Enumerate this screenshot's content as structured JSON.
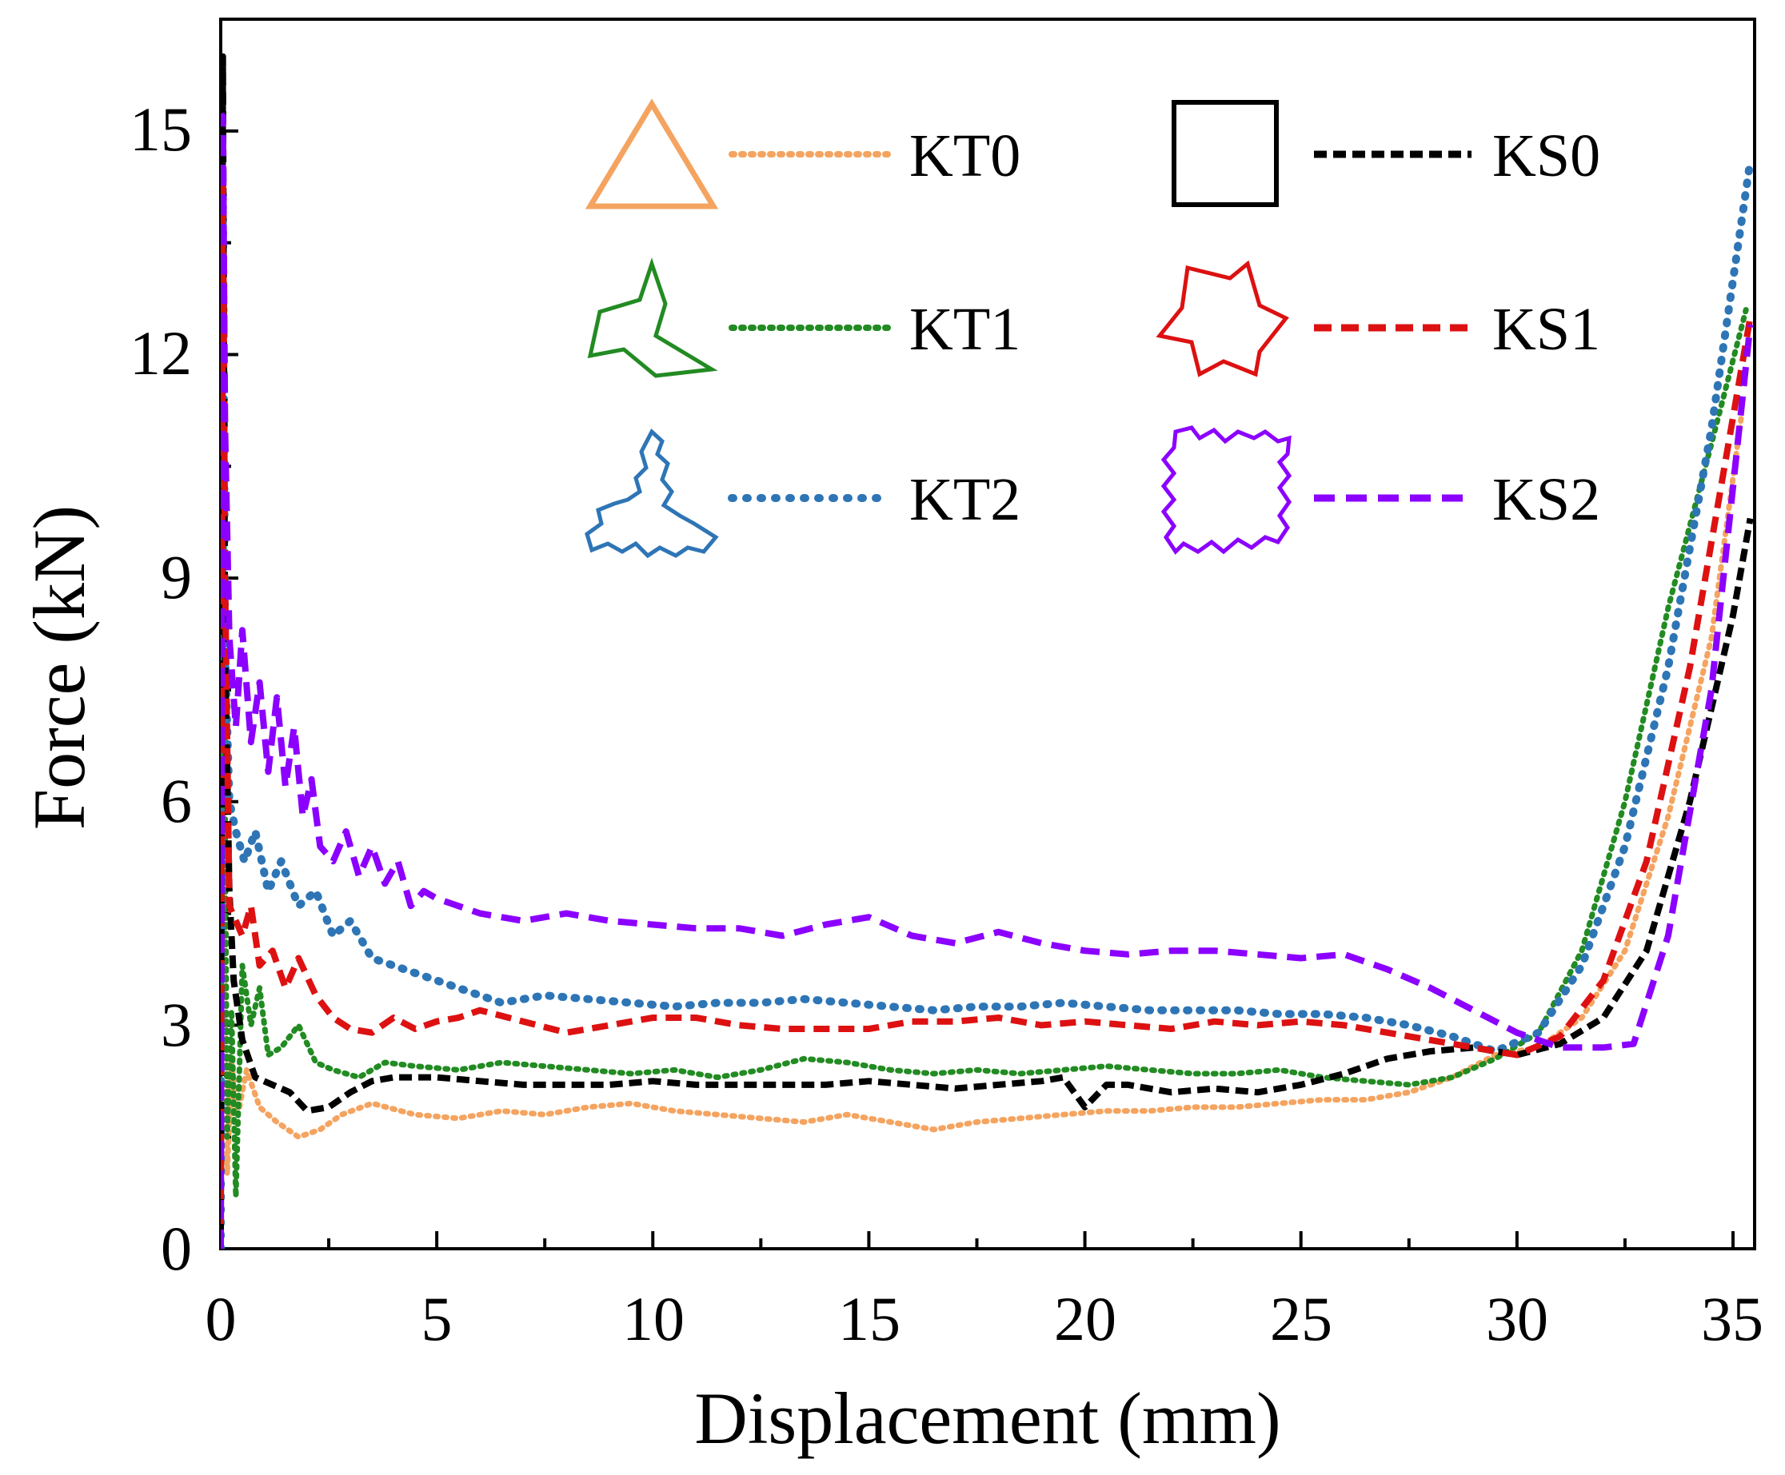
{
  "chart_data": {
    "type": "line",
    "title": "",
    "xlabel": "Displacement (mm)",
    "ylabel": "Force (kN)",
    "xlim": [
      0,
      35.5
    ],
    "ylim": [
      0,
      16.5
    ],
    "xticks": [
      0,
      5,
      10,
      15,
      20,
      25,
      30,
      35
    ],
    "xtick_labels": [
      "0",
      "5",
      "10",
      "15",
      "20",
      "25",
      "30",
      "35"
    ],
    "yticks": [
      0,
      3,
      6,
      9,
      12,
      15
    ],
    "ytick_labels": [
      "0",
      "3",
      "6",
      "9",
      "12",
      "15"
    ],
    "grid": false,
    "legend_position": "top-center",
    "series": [
      {
        "name": "KT0",
        "color": "#F4A460",
        "style": "dotted",
        "shape": "triangle",
        "x": [
          0,
          0.05,
          0.1,
          0.15,
          0.25,
          0.4,
          0.6,
          0.9,
          1.3,
          1.8,
          2.3,
          2.8,
          3.5,
          4.5,
          5.5,
          6.5,
          7.5,
          8.5,
          9.5,
          10.5,
          11.5,
          12.5,
          13.5,
          14.5,
          15.5,
          16.5,
          17.5,
          18.5,
          19.5,
          20.5,
          21.5,
          22.5,
          23.5,
          24.5,
          25.5,
          26.5,
          27.5,
          28.5,
          29.5,
          30.5,
          31.5,
          32.5,
          33.5,
          34.5,
          35.2
        ],
        "y": [
          0,
          11.5,
          5,
          1,
          2.5,
          1.8,
          2.4,
          1.9,
          1.7,
          1.5,
          1.6,
          1.8,
          1.95,
          1.8,
          1.75,
          1.85,
          1.8,
          1.9,
          1.95,
          1.85,
          1.8,
          1.75,
          1.7,
          1.8,
          1.7,
          1.6,
          1.7,
          1.75,
          1.8,
          1.85,
          1.85,
          1.9,
          1.9,
          1.95,
          2.0,
          2.0,
          2.1,
          2.3,
          2.6,
          2.7,
          3.1,
          4.0,
          5.8,
          8.2,
          11.2
        ]
      },
      {
        "name": "KT1",
        "color": "#228B22",
        "style": "dotted",
        "shape": "three-arm",
        "x": [
          0,
          0.05,
          0.1,
          0.15,
          0.25,
          0.35,
          0.5,
          0.7,
          0.9,
          1.1,
          1.4,
          1.8,
          2.2,
          2.6,
          3.2,
          3.8,
          4.5,
          5.5,
          6.5,
          7.5,
          8.5,
          9.5,
          10.5,
          11.5,
          12.5,
          13.5,
          14.5,
          15.5,
          16.5,
          17.5,
          18.5,
          19.5,
          20.5,
          21.5,
          22.5,
          23.5,
          24.5,
          25.5,
          26.5,
          27.5,
          28.5,
          29.5,
          30.5,
          31.5,
          32.5,
          33.5,
          34.5,
          35.3
        ],
        "y": [
          0,
          12.5,
          6,
          1.5,
          3.2,
          0.7,
          3.8,
          3.0,
          3.5,
          2.6,
          2.7,
          3.0,
          2.5,
          2.4,
          2.3,
          2.5,
          2.45,
          2.4,
          2.5,
          2.45,
          2.4,
          2.35,
          2.4,
          2.3,
          2.4,
          2.55,
          2.5,
          2.4,
          2.35,
          2.4,
          2.35,
          2.4,
          2.45,
          2.4,
          2.35,
          2.35,
          2.4,
          2.3,
          2.25,
          2.2,
          2.3,
          2.55,
          2.9,
          4.0,
          6.0,
          8.6,
          10.8,
          12.6
        ]
      },
      {
        "name": "KT2",
        "color": "#2E75B6",
        "style": "dotted",
        "shape": "fractal-three-arm",
        "x": [
          0,
          0.05,
          0.1,
          0.2,
          0.35,
          0.55,
          0.8,
          1.1,
          1.4,
          1.8,
          2.2,
          2.6,
          3.0,
          3.5,
          4.0,
          4.5,
          5.0,
          5.5,
          6.0,
          6.5,
          7.5,
          8.5,
          9.5,
          10.5,
          11.5,
          12.5,
          13.5,
          14.5,
          15.5,
          16.5,
          17.5,
          18.5,
          19.5,
          20.5,
          21.5,
          22.5,
          23.5,
          24.5,
          25.5,
          26.5,
          27.5,
          28.5,
          29.5,
          30.5,
          31.5,
          32.5,
          33.5,
          34.5,
          35.4
        ],
        "y": [
          0,
          14.2,
          8,
          6.0,
          5.6,
          5.2,
          5.6,
          4.8,
          5.2,
          4.6,
          4.8,
          4.2,
          4.4,
          3.9,
          3.8,
          3.7,
          3.6,
          3.5,
          3.4,
          3.3,
          3.4,
          3.35,
          3.3,
          3.25,
          3.3,
          3.3,
          3.35,
          3.3,
          3.25,
          3.2,
          3.25,
          3.25,
          3.3,
          3.25,
          3.2,
          3.2,
          3.2,
          3.15,
          3.15,
          3.1,
          3.0,
          2.85,
          2.65,
          2.9,
          3.8,
          5.4,
          7.8,
          11.0,
          14.6
        ]
      },
      {
        "name": "KS0",
        "color": "#000000",
        "style": "dashed",
        "shape": "square",
        "x": [
          0,
          0.05,
          0.1,
          0.2,
          0.3,
          0.5,
          0.8,
          1.2,
          1.6,
          2.0,
          2.5,
          3.0,
          3.5,
          4.0,
          5.0,
          6.0,
          7.0,
          8.0,
          9.0,
          10.0,
          11.0,
          12.0,
          13.0,
          14.0,
          15.0,
          16.0,
          17.0,
          18.0,
          19.0,
          19.5,
          20.0,
          20.5,
          21.0,
          22.0,
          23.0,
          24.0,
          25.0,
          26.0,
          27.0,
          28.0,
          29.0,
          30.0,
          31.0,
          32.0,
          33.0,
          34.0,
          35.0,
          35.4
        ],
        "y": [
          0,
          16.0,
          8,
          4.8,
          3.6,
          2.8,
          2.3,
          2.2,
          2.1,
          1.85,
          1.9,
          2.1,
          2.25,
          2.3,
          2.3,
          2.25,
          2.2,
          2.2,
          2.2,
          2.25,
          2.2,
          2.2,
          2.2,
          2.2,
          2.25,
          2.2,
          2.15,
          2.2,
          2.25,
          2.3,
          1.9,
          2.2,
          2.2,
          2.1,
          2.15,
          2.1,
          2.2,
          2.35,
          2.55,
          2.65,
          2.7,
          2.6,
          2.75,
          3.1,
          4.0,
          6.0,
          8.5,
          9.8
        ]
      },
      {
        "name": "KS1",
        "color": "#DD1111",
        "style": "dashed",
        "shape": "cross",
        "x": [
          0,
          0.05,
          0.1,
          0.2,
          0.35,
          0.5,
          0.7,
          0.9,
          1.2,
          1.5,
          1.8,
          2.2,
          2.6,
          3.0,
          3.5,
          4.0,
          4.5,
          5.0,
          5.5,
          6.0,
          7.0,
          8.0,
          9.0,
          10.0,
          11.0,
          12.0,
          13.0,
          14.0,
          15.0,
          16.0,
          17.0,
          18.0,
          19.0,
          20.0,
          21.0,
          22.0,
          23.0,
          24.0,
          25.0,
          26.0,
          27.0,
          28.0,
          29.0,
          30.0,
          31.0,
          32.0,
          33.0,
          34.0,
          35.4
        ],
        "y": [
          0,
          14.5,
          9,
          4.6,
          4.4,
          4.2,
          4.6,
          3.8,
          4.0,
          3.5,
          3.9,
          3.4,
          3.1,
          2.95,
          2.9,
          3.1,
          2.95,
          3.05,
          3.1,
          3.2,
          3.05,
          2.9,
          3.0,
          3.1,
          3.1,
          3.0,
          2.95,
          2.95,
          2.95,
          3.05,
          3.05,
          3.1,
          3.0,
          3.05,
          3.0,
          2.95,
          3.05,
          3.0,
          3.05,
          3.0,
          2.9,
          2.8,
          2.7,
          2.6,
          2.85,
          3.6,
          5.2,
          7.8,
          12.5
        ]
      },
      {
        "name": "KS2",
        "color": "#8B00FF",
        "style": "dashed",
        "shape": "fractal-cross",
        "x": [
          0,
          0.05,
          0.1,
          0.2,
          0.35,
          0.5,
          0.7,
          0.9,
          1.1,
          1.3,
          1.5,
          1.7,
          1.9,
          2.1,
          2.3,
          2.6,
          2.9,
          3.2,
          3.5,
          3.8,
          4.1,
          4.4,
          4.7,
          5.0,
          6.0,
          7.0,
          8.0,
          9.0,
          10.0,
          11.0,
          12.0,
          13.0,
          14.0,
          15.0,
          16.0,
          17.0,
          18.0,
          19.0,
          20.0,
          21.0,
          22.0,
          23.0,
          24.0,
          25.0,
          26.0,
          27.0,
          28.0,
          29.0,
          30.0,
          31.0,
          32.0,
          32.7,
          33.5,
          34.5,
          35.4
        ],
        "y": [
          0,
          15.2,
          11,
          8.2,
          7.0,
          8.3,
          6.8,
          7.6,
          6.4,
          7.4,
          6.2,
          7.0,
          5.8,
          6.3,
          5.4,
          5.2,
          5.6,
          5.0,
          5.4,
          4.9,
          5.2,
          4.6,
          4.8,
          4.7,
          4.5,
          4.4,
          4.5,
          4.4,
          4.35,
          4.3,
          4.3,
          4.2,
          4.35,
          4.45,
          4.2,
          4.1,
          4.25,
          4.1,
          4.0,
          3.95,
          4.0,
          4.0,
          3.95,
          3.9,
          3.95,
          3.75,
          3.5,
          3.2,
          2.9,
          2.7,
          2.7,
          2.75,
          4.2,
          7.5,
          12.4
        ]
      }
    ]
  }
}
